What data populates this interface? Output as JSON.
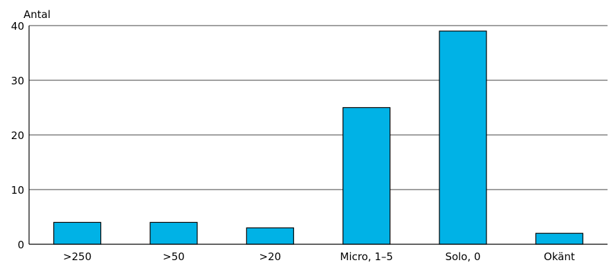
{
  "chart_data": {
    "type": "bar",
    "title": "",
    "ylabel": "Antal",
    "xlabel": "",
    "categories": [
      ">250",
      ">50",
      ">20",
      "Micro, 1–5",
      "Solo, 0",
      "Okänt"
    ],
    "values": [
      4,
      4,
      3,
      25,
      39,
      2
    ],
    "ylim": [
      0,
      40
    ],
    "yticks": [
      "0",
      "10",
      "20",
      "30",
      "40"
    ],
    "grid": true,
    "bar_color": "#00b2e6",
    "bar_edge_color": "#000000"
  }
}
